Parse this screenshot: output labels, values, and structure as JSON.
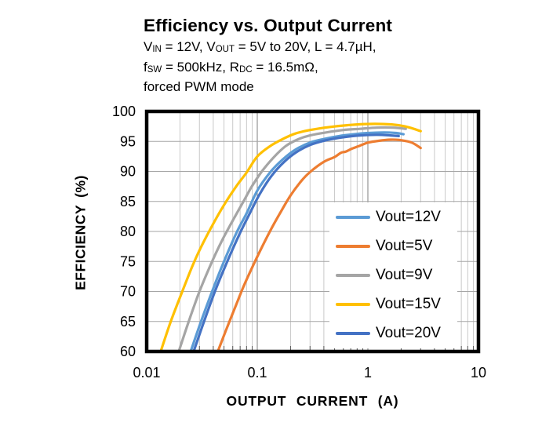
{
  "header": {
    "title": "Efficiency vs. Output Current",
    "subtitle_lines": [
      {
        "segments": [
          {
            "text": "V"
          },
          {
            "text": "IN",
            "sub": true
          },
          {
            "text": " = 12V, V"
          },
          {
            "text": "OUT",
            "sub": true
          },
          {
            "text": " = 5V to 20V, L = 4.7µH,"
          }
        ]
      },
      {
        "segments": [
          {
            "text": "f"
          },
          {
            "text": "SW",
            "sub": true
          },
          {
            "text": " = 500kHz, R"
          },
          {
            "text": "DC",
            "sub": true
          },
          {
            "text": " = 16.5mΩ,"
          }
        ]
      },
      {
        "segments": [
          {
            "text": "forced PWM mode"
          }
        ]
      }
    ]
  },
  "chart_data": {
    "type": "line",
    "title": "Efficiency vs. Output Current",
    "xlabel": "OUTPUT CURRENT (A)",
    "ylabel": "EFFICIENCY (%)",
    "x_scale": "log",
    "xlim": [
      0.01,
      10
    ],
    "ylim": [
      60,
      100
    ],
    "x_ticks": [
      0.01,
      0.1,
      1,
      10
    ],
    "x_tick_labels": [
      "0.01",
      "0.1",
      "1",
      "10"
    ],
    "y_ticks": [
      60,
      65,
      70,
      75,
      80,
      85,
      90,
      95,
      100
    ],
    "grid": true,
    "legend_position": "inside-lower-right",
    "colors": {
      "grid_minor": "#c9c9c9",
      "grid_major": "#7f7f7f",
      "grid_horizontal": "#a6a6a6",
      "axis_border": "#000000",
      "tick_stub": "#595959"
    },
    "series": [
      {
        "name": "Vout=12V",
        "color": "#5B9BD5",
        "points": [
          [
            0.025,
            60
          ],
          [
            0.031,
            65
          ],
          [
            0.04,
            70.5
          ],
          [
            0.05,
            75
          ],
          [
            0.065,
            79.8
          ],
          [
            0.08,
            83
          ],
          [
            0.1,
            86.8
          ],
          [
            0.13,
            89.8
          ],
          [
            0.17,
            92
          ],
          [
            0.22,
            93.6
          ],
          [
            0.3,
            94.8
          ],
          [
            0.4,
            95.4
          ],
          [
            0.55,
            95.9
          ],
          [
            0.75,
            96.2
          ],
          [
            1.0,
            96.4
          ],
          [
            1.4,
            96.5
          ],
          [
            1.8,
            96.4
          ],
          [
            2.1,
            96.2
          ]
        ]
      },
      {
        "name": "Vout=5V",
        "color": "#ED7D31",
        "points": [
          [
            0.044,
            60
          ],
          [
            0.052,
            63.5
          ],
          [
            0.062,
            67
          ],
          [
            0.075,
            70.8
          ],
          [
            0.09,
            74
          ],
          [
            0.105,
            76.6
          ],
          [
            0.13,
            80
          ],
          [
            0.16,
            83
          ],
          [
            0.2,
            86
          ],
          [
            0.25,
            88.4
          ],
          [
            0.3,
            89.9
          ],
          [
            0.4,
            91.6
          ],
          [
            0.5,
            92.4
          ],
          [
            0.57,
            93.1
          ],
          [
            0.63,
            93.3
          ],
          [
            0.72,
            93.8
          ],
          [
            0.85,
            94.3
          ],
          [
            1.0,
            94.8
          ],
          [
            1.25,
            95.1
          ],
          [
            1.6,
            95.3
          ],
          [
            2.0,
            95.2
          ],
          [
            2.5,
            94.8
          ],
          [
            3.0,
            93.9
          ]
        ]
      },
      {
        "name": "Vout=9V",
        "color": "#A5A5A5",
        "points": [
          [
            0.0195,
            60
          ],
          [
            0.024,
            65
          ],
          [
            0.03,
            70
          ],
          [
            0.038,
            74.5
          ],
          [
            0.048,
            78.5
          ],
          [
            0.06,
            81.8
          ],
          [
            0.075,
            85
          ],
          [
            0.09,
            87.6
          ],
          [
            0.11,
            90
          ],
          [
            0.14,
            92.3
          ],
          [
            0.18,
            94.2
          ],
          [
            0.23,
            95.3
          ],
          [
            0.3,
            96
          ],
          [
            0.42,
            96.5
          ],
          [
            0.6,
            96.9
          ],
          [
            0.85,
            97.1
          ],
          [
            1.2,
            97.3
          ],
          [
            1.7,
            97.3
          ],
          [
            2.2,
            97.1
          ]
        ]
      },
      {
        "name": "Vout=15V",
        "color": "#FFC000",
        "points": [
          [
            0.0134,
            60
          ],
          [
            0.0165,
            65
          ],
          [
            0.021,
            70
          ],
          [
            0.026,
            74.3
          ],
          [
            0.031,
            77.4
          ],
          [
            0.04,
            81.3
          ],
          [
            0.05,
            84.4
          ],
          [
            0.065,
            87.6
          ],
          [
            0.08,
            89.8
          ],
          [
            0.1,
            92.5
          ],
          [
            0.13,
            94.2
          ],
          [
            0.17,
            95.4
          ],
          [
            0.22,
            96.3
          ],
          [
            0.3,
            96.9
          ],
          [
            0.45,
            97.4
          ],
          [
            0.65,
            97.7
          ],
          [
            0.95,
            97.9
          ],
          [
            1.4,
            97.9
          ],
          [
            1.9,
            97.7
          ],
          [
            2.4,
            97.3
          ],
          [
            3.0,
            96.7
          ]
        ]
      },
      {
        "name": "Vout=20V",
        "color": "#4472C4",
        "points": [
          [
            0.0266,
            60
          ],
          [
            0.033,
            65
          ],
          [
            0.042,
            70.3
          ],
          [
            0.053,
            74.8
          ],
          [
            0.068,
            79.3
          ],
          [
            0.085,
            82.9
          ],
          [
            0.105,
            86.2
          ],
          [
            0.135,
            89.3
          ],
          [
            0.175,
            91.6
          ],
          [
            0.225,
            93.2
          ],
          [
            0.3,
            94.4
          ],
          [
            0.42,
            95.2
          ],
          [
            0.6,
            95.7
          ],
          [
            0.85,
            96
          ],
          [
            1.2,
            96.1
          ],
          [
            1.6,
            96
          ],
          [
            1.9,
            95.9
          ]
        ]
      }
    ]
  }
}
